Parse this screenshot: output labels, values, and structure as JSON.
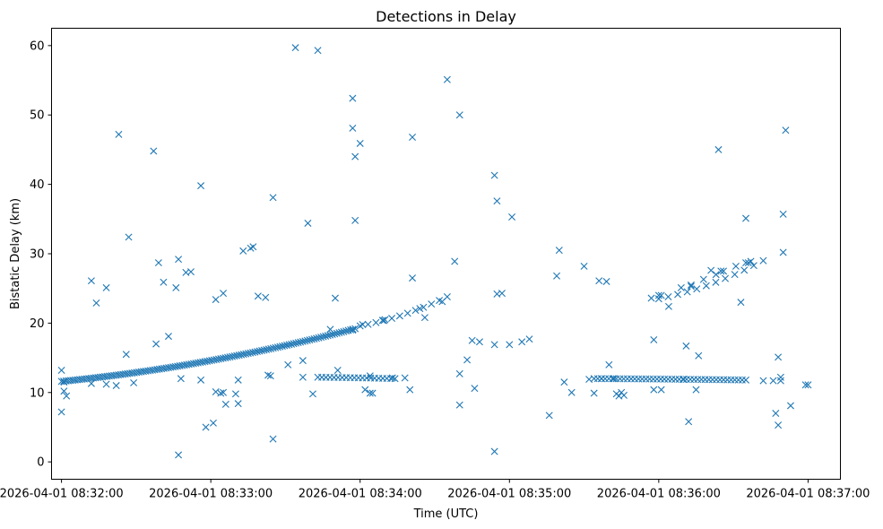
{
  "chart_data": {
    "type": "scatter",
    "title": "Detections in Delay",
    "xlabel": "Time (UTC)",
    "ylabel": "Bistatic Delay (km)",
    "marker": "x",
    "color": "#1f77b4",
    "grid": false,
    "legend": "none",
    "x_unit": "seconds after 2026-04-01 08:32:00",
    "xlim": [
      -4,
      313
    ],
    "ylim": [
      -2.5,
      62.5
    ],
    "x_ticks": [
      0,
      60,
      120,
      180,
      240,
      300
    ],
    "x_tick_labels": [
      "2026-04-01 08:32:00",
      "2026-04-01 08:33:00",
      "2026-04-01 08:34:00",
      "2026-04-01 08:35:00",
      "2026-04-01 08:36:00",
      "2026-04-01 08:37:00"
    ],
    "y_ticks": [
      0,
      10,
      20,
      30,
      40,
      50,
      60
    ],
    "y_tick_labels": [
      "0",
      "10",
      "20",
      "30",
      "40",
      "50",
      "60"
    ],
    "track_segments": [
      {
        "name": "rising-track-1",
        "x_start": 0,
        "x_end": 118,
        "y_start": 11.6,
        "y_end": 19.2,
        "count": 130
      },
      {
        "name": "rising-track-2",
        "x_start": 120,
        "x_end": 155,
        "y_start": 19.6,
        "y_end": 23.8,
        "count": 12
      },
      {
        "name": "flat-track-1",
        "x_start": 103,
        "x_end": 134,
        "y_start": 12.2,
        "y_end": 12.0,
        "count": 20
      },
      {
        "name": "flat-track-2",
        "x_start": 214,
        "x_end": 275,
        "y_start": 12.0,
        "y_end": 11.8,
        "count": 42
      },
      {
        "name": "rising-track-3",
        "x_start": 240,
        "x_end": 282,
        "y_start": 23.5,
        "y_end": 29.0,
        "count": 12
      }
    ],
    "points": [
      [
        0,
        7.2
      ],
      [
        0,
        13.2
      ],
      [
        1,
        11.5
      ],
      [
        1,
        10.2
      ],
      [
        2,
        9.5
      ],
      [
        12,
        26.1
      ],
      [
        14,
        22.9
      ],
      [
        18,
        25.1
      ],
      [
        12,
        11.3
      ],
      [
        18,
        11.2
      ],
      [
        22,
        11.0
      ],
      [
        23,
        47.2
      ],
      [
        26,
        15.5
      ],
      [
        27,
        32.4
      ],
      [
        29,
        11.4
      ],
      [
        37,
        44.8
      ],
      [
        38,
        17.0
      ],
      [
        39,
        28.7
      ],
      [
        41,
        25.9
      ],
      [
        43,
        18.1
      ],
      [
        46,
        25.1
      ],
      [
        47,
        1.0
      ],
      [
        47,
        29.2
      ],
      [
        48,
        12.0
      ],
      [
        50,
        27.3
      ],
      [
        52,
        27.4
      ],
      [
        56,
        39.8
      ],
      [
        56,
        11.8
      ],
      [
        58,
        5.0
      ],
      [
        61,
        5.6
      ],
      [
        62,
        23.4
      ],
      [
        62,
        10.1
      ],
      [
        64,
        9.9
      ],
      [
        65,
        10.0
      ],
      [
        65,
        24.3
      ],
      [
        66,
        8.3
      ],
      [
        70,
        9.8
      ],
      [
        71,
        11.8
      ],
      [
        71,
        8.4
      ],
      [
        73,
        30.4
      ],
      [
        76,
        30.8
      ],
      [
        77,
        31.0
      ],
      [
        79,
        23.9
      ],
      [
        82,
        23.7
      ],
      [
        83,
        12.5
      ],
      [
        84,
        12.4
      ],
      [
        85,
        38.1
      ],
      [
        85,
        3.3
      ],
      [
        91,
        14.0
      ],
      [
        94,
        59.7
      ],
      [
        97,
        14.6
      ],
      [
        97,
        12.2
      ],
      [
        99,
        34.4
      ],
      [
        101,
        9.8
      ],
      [
        103,
        59.3
      ],
      [
        108,
        19.1
      ],
      [
        110,
        23.6
      ],
      [
        111,
        13.2
      ],
      [
        117,
        19.0
      ],
      [
        117,
        48.1
      ],
      [
        117,
        52.4
      ],
      [
        118,
        44.0
      ],
      [
        118,
        34.8
      ],
      [
        120,
        45.9
      ],
      [
        121,
        19.8
      ],
      [
        122,
        10.4
      ],
      [
        124,
        9.9
      ],
      [
        125,
        9.9
      ],
      [
        124,
        12.4
      ],
      [
        129,
        20.4
      ],
      [
        130,
        20.5
      ],
      [
        133,
        12.1
      ],
      [
        138,
        12.1
      ],
      [
        140,
        10.4
      ],
      [
        141,
        46.8
      ],
      [
        141,
        26.5
      ],
      [
        144,
        22.1
      ],
      [
        146,
        20.8
      ],
      [
        153,
        23.1
      ],
      [
        155,
        55.1
      ],
      [
        158,
        28.9
      ],
      [
        160,
        50.0
      ],
      [
        160,
        12.7
      ],
      [
        160,
        8.2
      ],
      [
        163,
        14.7
      ],
      [
        165,
        17.5
      ],
      [
        166,
        10.6
      ],
      [
        168,
        17.3
      ],
      [
        174,
        1.5
      ],
      [
        174,
        16.9
      ],
      [
        174,
        41.3
      ],
      [
        175,
        37.6
      ],
      [
        175,
        24.2
      ],
      [
        177,
        24.3
      ],
      [
        180,
        16.9
      ],
      [
        181,
        35.3
      ],
      [
        185,
        17.3
      ],
      [
        188,
        17.7
      ],
      [
        196,
        6.7
      ],
      [
        199,
        26.8
      ],
      [
        200,
        30.5
      ],
      [
        202,
        11.5
      ],
      [
        205,
        10.0
      ],
      [
        210,
        28.2
      ],
      [
        212,
        11.9
      ],
      [
        214,
        9.9
      ],
      [
        216,
        26.1
      ],
      [
        217,
        12.0
      ],
      [
        219,
        26.0
      ],
      [
        220,
        14.0
      ],
      [
        222,
        12.0
      ],
      [
        223,
        9.8
      ],
      [
        224,
        9.5
      ],
      [
        225,
        10.0
      ],
      [
        226,
        9.6
      ],
      [
        237,
        23.6
      ],
      [
        238,
        17.6
      ],
      [
        238,
        10.4
      ],
      [
        240,
        24.0
      ],
      [
        241,
        10.4
      ],
      [
        241,
        24.0
      ],
      [
        244,
        22.4
      ],
      [
        249,
        25.1
      ],
      [
        250,
        11.9
      ],
      [
        251,
        16.7
      ],
      [
        252,
        5.8
      ],
      [
        253,
        25.3
      ],
      [
        253,
        25.5
      ],
      [
        255,
        10.4
      ],
      [
        256,
        15.3
      ],
      [
        258,
        26.3
      ],
      [
        261,
        27.6
      ],
      [
        263,
        27.0
      ],
      [
        264,
        45.0
      ],
      [
        265,
        27.5
      ],
      [
        266,
        27.5
      ],
      [
        271,
        28.2
      ],
      [
        273,
        23.0
      ],
      [
        275,
        35.1
      ],
      [
        275,
        28.7
      ],
      [
        276,
        28.7
      ],
      [
        277,
        28.9
      ],
      [
        282,
        11.7
      ],
      [
        286,
        11.7
      ],
      [
        287,
        7.0
      ],
      [
        288,
        5.3
      ],
      [
        288,
        15.1
      ],
      [
        289,
        11.7
      ],
      [
        289,
        12.2
      ],
      [
        290,
        30.2
      ],
      [
        290,
        35.7
      ],
      [
        291,
        47.8
      ],
      [
        293,
        8.1
      ],
      [
        299,
        11.1
      ],
      [
        300,
        11.1
      ]
    ]
  }
}
